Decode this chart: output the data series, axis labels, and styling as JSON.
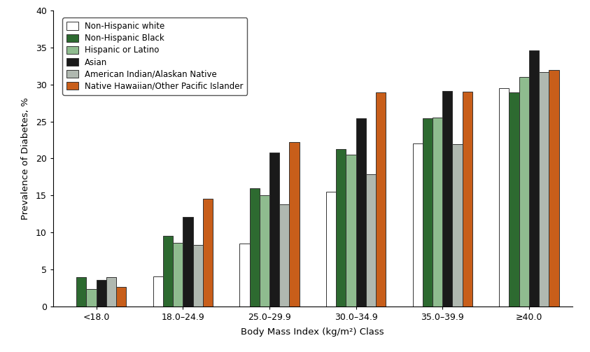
{
  "categories": [
    "<18.0",
    "18.0–24.9",
    "25.0–29.9",
    "30.0–34.9",
    "35.0–39.9",
    "≥40.0"
  ],
  "series": {
    "Non-Hispanic white": [
      0.0,
      4.0,
      8.5,
      15.5,
      22.0,
      29.5
    ],
    "Non-Hispanic Black": [
      3.9,
      9.5,
      16.0,
      21.3,
      25.4,
      28.9
    ],
    "Hispanic or Latino": [
      2.3,
      8.6,
      15.0,
      20.5,
      25.5,
      31.0
    ],
    "Asian": [
      3.6,
      12.1,
      20.8,
      25.4,
      29.1,
      34.6
    ],
    "American Indian/Alaskan Native": [
      3.9,
      8.3,
      13.8,
      17.9,
      21.9,
      31.7
    ],
    "Native Hawaiian/Other Pacific Islander": [
      2.6,
      14.5,
      22.2,
      28.9,
      29.0,
      32.0
    ]
  },
  "colors": {
    "Non-Hispanic white": "#FFFFFF",
    "Non-Hispanic Black": "#2d6a30",
    "Hispanic or Latino": "#8fbc8f",
    "Asian": "#1a1a1a",
    "American Indian/Alaskan Native": "#b0b8b0",
    "Native Hawaiian/Other Pacific Islander": "#c85e1a"
  },
  "edgecolor": "#333333",
  "xlabel": "Body Mass Index (kg/m²) Class",
  "ylabel": "Prevalence of Diabetes, %",
  "ylim": [
    0,
    40
  ],
  "yticks": [
    0,
    5,
    10,
    15,
    20,
    25,
    30,
    35,
    40
  ],
  "bar_width": 0.115,
  "legend_fontsize": 8.5,
  "axis_fontsize": 9.5,
  "tick_fontsize": 9
}
